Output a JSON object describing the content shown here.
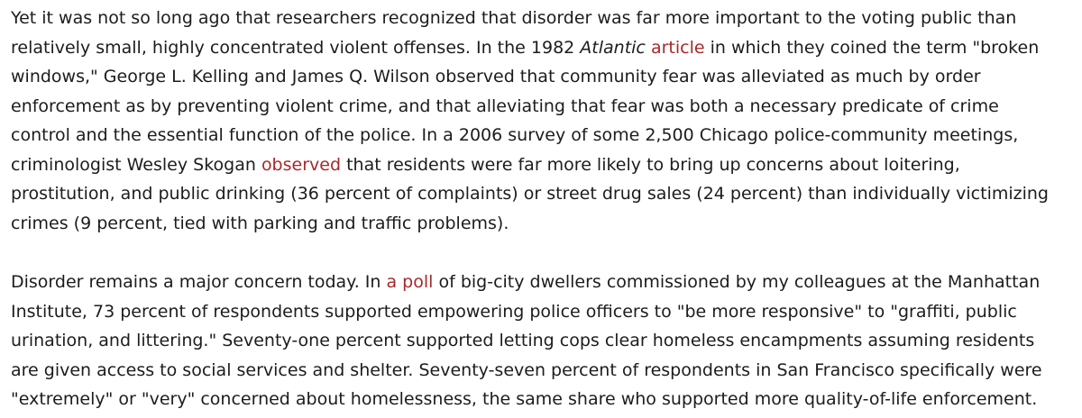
{
  "paragraph_1": {
    "l1": "Yet it was not so long ago that researchers recognized that disorder was far more important to the voting public than",
    "l2_a": "relatively small, highly concentrated violent offenses. In the 1982 ",
    "l2_em": "Atlantic",
    "l2_b": " ",
    "l2_link": "article",
    "l2_c": " in which they coined the term \"broken",
    "l3": "windows,\" George L. Kelling and James Q. Wilson observed that community fear was alleviated as much by order",
    "l4": "enforcement as by preventing violent crime, and that alleviating that fear was both a necessary predicate of crime",
    "l5": "control and the essential function of the police. In a 2006 survey of some 2,500 Chicago police-community meetings,",
    "l6_a": "criminologist Wesley Skogan ",
    "l6_link": "observed",
    "l6_b": " that residents were far more likely to bring up concerns about loitering,",
    "l7": "prostitution, and public drinking (36 percent of complaints) or street drug sales (24 percent) than individually victimizing",
    "l8": "crimes (9 percent, tied with parking and traffic problems)."
  },
  "paragraph_2": {
    "l1_a": "Disorder remains a major concern today. In ",
    "l1_link": "a poll",
    "l1_b": " of big-city dwellers commissioned by my colleagues at the Manhattan",
    "l2": "Institute, 73 percent of respondents supported empowering police officers to \"be more responsive\" to \"graffiti, public",
    "l3": "urination, and littering.\" Seventy-one percent supported letting cops clear homeless encampments assuming residents",
    "l4": "are given access to social services and shelter. Seventy-seven percent of respondents in San Francisco specifically were",
    "l5": "\"extremely\" or \"very\" concerned about homelessness, the same share who supported more quality-of-life enforcement."
  },
  "colors": {
    "text": "#1c1c1c",
    "link": "#a8282b",
    "background": "#ffffff"
  }
}
